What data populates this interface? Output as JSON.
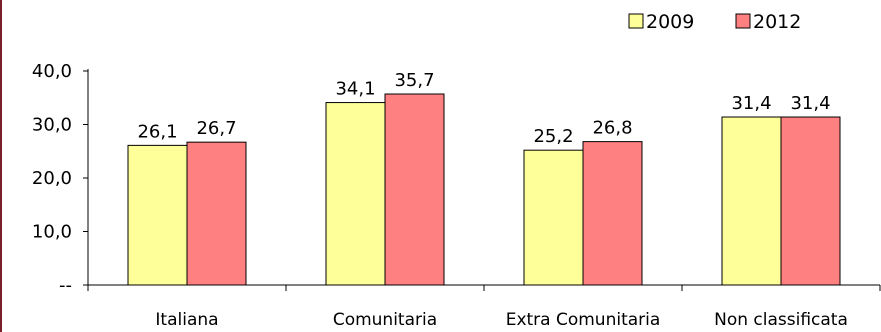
{
  "chart_data": {
    "type": "bar",
    "title": "",
    "xlabel": "",
    "ylabel": "",
    "categories": [
      "Italiana",
      "Comunitaria",
      "Extra Comunitaria",
      "Non classificata"
    ],
    "series": [
      {
        "name": "2009",
        "values": [
          26.1,
          34.1,
          25.2,
          31.4
        ],
        "labels": [
          "26,1",
          "34,1",
          "25,2",
          "31,4"
        ],
        "color": "#ffff99"
      },
      {
        "name": "2012",
        "values": [
          26.7,
          35.7,
          26.8,
          31.4
        ],
        "labels": [
          "26,7",
          "35,7",
          "26,8",
          "31,4"
        ],
        "color": "#ff8080"
      }
    ],
    "ylim": [
      0,
      40
    ],
    "yticks": [
      0,
      10,
      20,
      30,
      40
    ],
    "ytick_labels": [
      "--",
      "10,0",
      "20,0",
      "30,0",
      "40,0"
    ],
    "grid": false,
    "legend_position": "top-right"
  }
}
